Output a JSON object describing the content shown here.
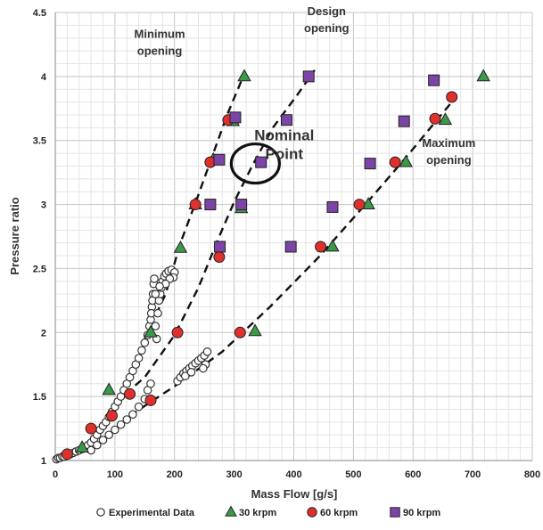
{
  "chart_data": {
    "type": "scatter",
    "xlabel": "Mass Flow [g/s]",
    "ylabel": "Pressure ratio",
    "xlim": [
      0,
      800
    ],
    "ylim": [
      1,
      4.5
    ],
    "xticks": [
      0,
      100,
      200,
      300,
      400,
      500,
      600,
      700,
      800
    ],
    "yticks": [
      1,
      1.5,
      2,
      2.5,
      3,
      3.5,
      4,
      4.5
    ],
    "grid": true,
    "legend_position": "bottom",
    "series": [
      {
        "name": "Experimental Data",
        "marker": "circle-open",
        "color": "#ffffff",
        "points": [
          [
            2,
            1.01
          ],
          [
            5,
            1.02
          ],
          [
            8,
            1.02
          ],
          [
            12,
            1.03
          ],
          [
            15,
            1.03
          ],
          [
            20,
            1.04
          ],
          [
            25,
            1.05
          ],
          [
            30,
            1.06
          ],
          [
            35,
            1.07
          ],
          [
            40,
            1.08
          ],
          [
            45,
            1.09
          ],
          [
            50,
            1.1
          ],
          [
            55,
            1.12
          ],
          [
            60,
            1.14
          ],
          [
            65,
            1.17
          ],
          [
            70,
            1.2
          ],
          [
            75,
            1.24
          ],
          [
            80,
            1.27
          ],
          [
            85,
            1.3
          ],
          [
            90,
            1.34
          ],
          [
            95,
            1.38
          ],
          [
            100,
            1.42
          ],
          [
            105,
            1.46
          ],
          [
            110,
            1.5
          ],
          [
            115,
            1.55
          ],
          [
            120,
            1.6
          ],
          [
            125,
            1.65
          ],
          [
            130,
            1.7
          ],
          [
            135,
            1.75
          ],
          [
            140,
            1.8
          ],
          [
            145,
            1.86
          ],
          [
            150,
            1.92
          ],
          [
            155,
            1.98
          ],
          [
            158,
            2.05
          ],
          [
            160,
            2.1
          ],
          [
            162,
            2.2
          ],
          [
            164,
            2.3
          ],
          [
            165,
            2.38
          ],
          [
            163,
            2.25
          ],
          [
            161,
            2.15
          ],
          [
            166,
            2.42
          ],
          [
            168,
            2.05
          ],
          [
            170,
            1.95
          ],
          [
            172,
            2.15
          ],
          [
            174,
            2.25
          ],
          [
            176,
            2.3
          ],
          [
            178,
            2.35
          ],
          [
            180,
            2.4
          ],
          [
            183,
            2.44
          ],
          [
            186,
            2.46
          ],
          [
            190,
            2.48
          ],
          [
            195,
            2.49
          ],
          [
            200,
            2.47
          ],
          [
            198,
            2.43
          ],
          [
            192,
            2.42
          ],
          [
            185,
            2.38
          ],
          [
            175,
            2.36
          ],
          [
            168,
            2.3
          ],
          [
            60,
            1.08
          ],
          [
            70,
            1.12
          ],
          [
            80,
            1.16
          ],
          [
            90,
            1.2
          ],
          [
            100,
            1.24
          ],
          [
            110,
            1.28
          ],
          [
            120,
            1.32
          ],
          [
            130,
            1.36
          ],
          [
            140,
            1.42
          ],
          [
            150,
            1.48
          ],
          [
            155,
            1.55
          ],
          [
            160,
            1.6
          ],
          [
            205,
            1.62
          ],
          [
            210,
            1.65
          ],
          [
            215,
            1.68
          ],
          [
            220,
            1.7
          ],
          [
            225,
            1.72
          ],
          [
            230,
            1.74
          ],
          [
            235,
            1.76
          ],
          [
            240,
            1.78
          ],
          [
            245,
            1.8
          ],
          [
            250,
            1.82
          ],
          [
            255,
            1.85
          ],
          [
            252,
            1.75
          ],
          [
            248,
            1.72
          ],
          [
            218,
            1.66
          ],
          [
            228,
            1.69
          ]
        ]
      },
      {
        "name": "30 krpm",
        "marker": "triangle",
        "color": "#3a9a48",
        "points": [
          [
            45,
            1.1
          ],
          [
            90,
            1.55
          ],
          [
            160,
            2.0
          ],
          [
            210,
            2.66
          ],
          [
            235,
            3.0
          ],
          [
            265,
            3.35
          ],
          [
            298,
            3.65
          ],
          [
            317,
            4.0
          ],
          [
            312,
            2.97
          ],
          [
            335,
            2.01
          ],
          [
            465,
            2.67
          ],
          [
            525,
            3.0
          ],
          [
            588,
            3.33
          ],
          [
            654,
            3.66
          ],
          [
            718,
            4.0
          ]
        ]
      },
      {
        "name": "60 krpm",
        "marker": "circle",
        "color": "#e0302c",
        "points": [
          [
            20,
            1.05
          ],
          [
            60,
            1.25
          ],
          [
            95,
            1.35
          ],
          [
            125,
            1.52
          ],
          [
            160,
            1.47
          ],
          [
            205,
            2.0
          ],
          [
            235,
            3.0
          ],
          [
            260,
            3.33
          ],
          [
            290,
            3.66
          ],
          [
            275,
            2.59
          ],
          [
            310,
            2.0
          ],
          [
            445,
            2.67
          ],
          [
            510,
            3.0
          ],
          [
            570,
            3.33
          ],
          [
            637,
            3.67
          ],
          [
            665,
            3.84
          ]
        ]
      },
      {
        "name": "90 krpm",
        "marker": "square",
        "color": "#7b44a6",
        "points": [
          [
            345,
            3.33
          ],
          [
            425,
            4.0
          ],
          [
            388,
            3.66
          ],
          [
            260,
            3.0
          ],
          [
            275,
            3.35
          ],
          [
            302,
            3.68
          ],
          [
            276,
            2.67
          ],
          [
            312,
            3.0
          ],
          [
            395,
            2.67
          ],
          [
            465,
            2.98
          ],
          [
            528,
            3.32
          ],
          [
            585,
            3.65
          ],
          [
            635,
            3.97
          ]
        ]
      }
    ],
    "trend_lines": [
      [
        [
          150,
          1.95
        ],
        [
          185,
          2.3
        ],
        [
          210,
          2.7
        ],
        [
          238,
          3.05
        ],
        [
          265,
          3.4
        ],
        [
          290,
          3.72
        ],
        [
          317,
          4.02
        ]
      ],
      [
        [
          100,
          1.45
        ],
        [
          150,
          1.65
        ],
        [
          200,
          1.98
        ],
        [
          240,
          2.35
        ],
        [
          275,
          2.75
        ],
        [
          300,
          3.02
        ],
        [
          330,
          3.3
        ],
        [
          365,
          3.6
        ],
        [
          405,
          3.85
        ],
        [
          435,
          4.05
        ]
      ],
      [
        [
          125,
          1.35
        ],
        [
          200,
          1.58
        ],
        [
          280,
          1.85
        ],
        [
          360,
          2.2
        ],
        [
          440,
          2.58
        ],
        [
          520,
          3.0
        ],
        [
          585,
          3.35
        ],
        [
          640,
          3.66
        ],
        [
          665,
          3.8
        ]
      ]
    ],
    "annotations": [
      {
        "lines": [
          "Minimum",
          "opening"
        ],
        "x": 175,
        "y": 4.3
      },
      {
        "lines": [
          "Design",
          "opening"
        ],
        "x": 455,
        "y": 4.48
      },
      {
        "lines": [
          "Nominal",
          "Point"
        ],
        "x": 384,
        "y": 3.5
      },
      {
        "lines": [
          "Maximum",
          "opening"
        ],
        "x": 660,
        "y": 3.45
      }
    ],
    "highlight": {
      "x": 340,
      "y": 3.32
    }
  }
}
